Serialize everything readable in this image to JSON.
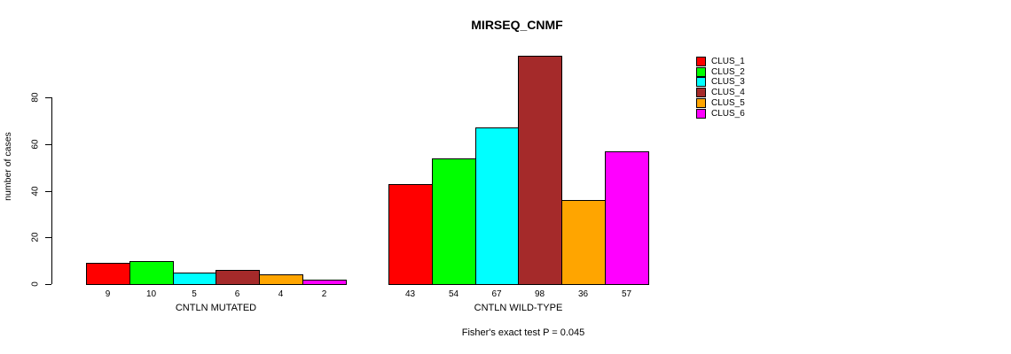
{
  "chart_data": {
    "type": "bar",
    "title": "MIRSEQ_CNMF",
    "ylabel": "number of cases",
    "yticks": [
      0,
      20,
      40,
      60,
      80
    ],
    "ylim": [
      0,
      100
    ],
    "grid": false,
    "legend_position": "right",
    "categories": [
      "CLUS_1",
      "CLUS_2",
      "CLUS_3",
      "CLUS_4",
      "CLUS_5",
      "CLUS_6"
    ],
    "colors": [
      "#ff0000",
      "#00ff00",
      "#00ffff",
      "#a52a2a",
      "#ffa500",
      "#ff00ff"
    ],
    "groups": [
      {
        "label": "CNTLN MUTATED",
        "values": [
          9,
          10,
          5,
          6,
          4,
          2
        ]
      },
      {
        "label": "CNTLN WILD-TYPE",
        "values": [
          43,
          54,
          67,
          98,
          36,
          57
        ]
      }
    ],
    "annotation": "Fisher's exact test P = 0.045"
  }
}
